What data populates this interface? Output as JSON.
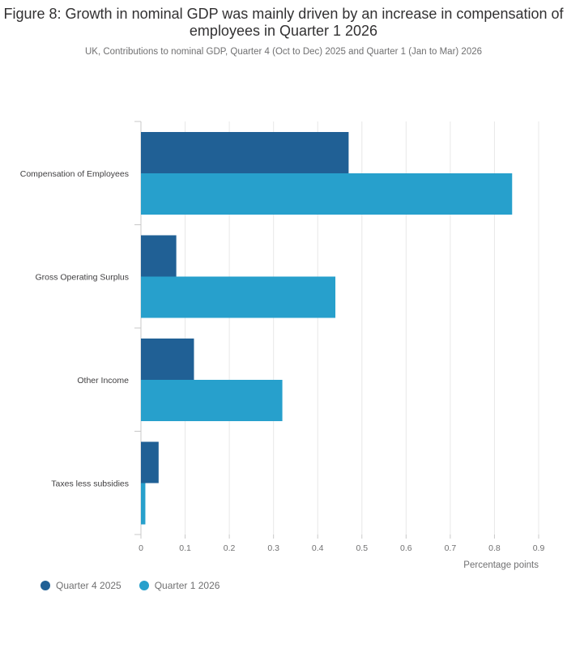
{
  "header": {
    "title": "Figure 8: Growth in nominal GDP was mainly driven by an increase in compensation of employees in Quarter 1 2026",
    "subtitle": "UK, Contributions to nominal GDP, Quarter 4 (Oct to Dec) 2025 and Quarter 1 (Jan to Mar) 2026"
  },
  "chart_data": {
    "type": "bar",
    "orientation": "horizontal",
    "categories": [
      "Compensation of Employees",
      "Gross Operating Surplus",
      "Other Income",
      "Taxes less subsidies"
    ],
    "series": [
      {
        "name": "Quarter 4 2025",
        "values": [
          0.47,
          0.08,
          0.12,
          0.04
        ],
        "color": "#206095"
      },
      {
        "name": "Quarter 1 2026",
        "values": [
          0.84,
          0.44,
          0.32,
          0.01
        ],
        "color": "#27a0cc"
      }
    ],
    "xlabel": "Percentage points",
    "ylabel": "",
    "xlim": [
      0,
      0.9
    ],
    "ticks": [
      "0",
      "0.1",
      "0.2",
      "0.3",
      "0.4",
      "0.5",
      "0.6",
      "0.7",
      "0.8",
      "0.9"
    ],
    "grid": true,
    "legend_position": "bottom-left"
  }
}
